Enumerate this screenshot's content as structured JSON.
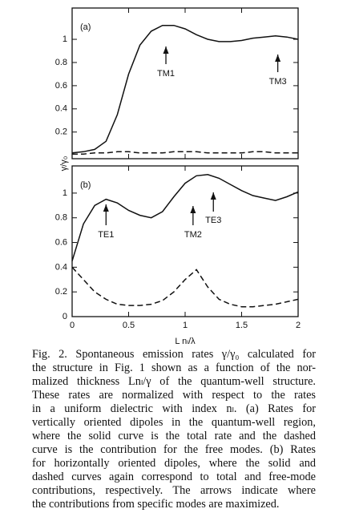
{
  "chart_data": [
    {
      "type": "line",
      "panel_label": "(a)",
      "ylabel": "γ/γ₀",
      "x": [
        0,
        0.1,
        0.2,
        0.3,
        0.4,
        0.5,
        0.6,
        0.7,
        0.8,
        0.9,
        1.0,
        1.1,
        1.2,
        1.3,
        1.4,
        1.5,
        1.6,
        1.7,
        1.8,
        1.9,
        2.0
      ],
      "series": [
        {
          "color": "#111111",
          "linestyle": "solid",
          "values": [
            0.02,
            0.03,
            0.05,
            0.12,
            0.35,
            0.7,
            0.95,
            1.07,
            1.12,
            1.12,
            1.09,
            1.04,
            1.0,
            0.98,
            0.98,
            0.99,
            1.01,
            1.02,
            1.03,
            1.02,
            1.0
          ]
        },
        {
          "color": "#111111",
          "linestyle": "dashed",
          "values": [
            0.01,
            0.01,
            0.02,
            0.02,
            0.03,
            0.03,
            0.02,
            0.02,
            0.02,
            0.03,
            0.03,
            0.03,
            0.02,
            0.02,
            0.02,
            0.02,
            0.03,
            0.03,
            0.02,
            0.02,
            0.02
          ]
        }
      ],
      "annotations": [
        {
          "text": "TM1",
          "x": 0.83
        },
        {
          "text": "TM3",
          "x": 1.82
        }
      ],
      "xlim": [
        0,
        2
      ],
      "xticks": [
        0,
        0.5,
        1,
        1.5,
        2
      ],
      "ylim": [
        -0.03,
        1.27
      ],
      "yticks": [
        0.2,
        0.4,
        0.6,
        0.8,
        1
      ]
    },
    {
      "type": "line",
      "panel_label": "(b)",
      "xlabel": "L nₗ/λ",
      "x": [
        0,
        0.1,
        0.2,
        0.3,
        0.4,
        0.5,
        0.6,
        0.7,
        0.8,
        0.9,
        1.0,
        1.1,
        1.2,
        1.3,
        1.4,
        1.5,
        1.6,
        1.7,
        1.8,
        1.9,
        2.0
      ],
      "series": [
        {
          "color": "#111111",
          "linestyle": "solid",
          "values": [
            0.45,
            0.75,
            0.9,
            0.95,
            0.92,
            0.86,
            0.82,
            0.8,
            0.85,
            0.97,
            1.08,
            1.14,
            1.15,
            1.12,
            1.07,
            1.02,
            0.98,
            0.96,
            0.94,
            0.97,
            1.01
          ]
        },
        {
          "color": "#111111",
          "linestyle": "dashed",
          "values": [
            0.4,
            0.3,
            0.2,
            0.14,
            0.1,
            0.09,
            0.09,
            0.1,
            0.13,
            0.2,
            0.3,
            0.38,
            0.24,
            0.14,
            0.1,
            0.08,
            0.08,
            0.09,
            0.1,
            0.12,
            0.14
          ]
        }
      ],
      "annotations": [
        {
          "text": "TE1",
          "x": 0.3
        },
        {
          "text": "TM2",
          "x": 1.07
        },
        {
          "text": "TE3",
          "x": 1.25
        }
      ],
      "xlim": [
        0,
        2
      ],
      "xticks": [
        0,
        0.5,
        1,
        1.5,
        2
      ],
      "ylim": [
        0,
        1.22
      ],
      "yticks": [
        0,
        0.2,
        0.4,
        0.6,
        0.8,
        1
      ]
    }
  ],
  "caption": [
    "Fig. 2.  Spontaneous emission rates γ/γ₀ calculated for",
    "the structure in Fig. 1 shown as a function of the nor-",
    "malized thickness Lnₗ/γ of the quantum-well structure.",
    "These rates are normalized with respect to the rates",
    "in a uniform dielectric with index nₗ.  (a) Rates for",
    "vertically oriented dipoles in the quantum-well region,",
    "where the solid curve is the total rate and the dashed",
    "curve is the contribution for the free modes.  (b) Rates",
    "for horizontally oriented dipoles, where the solid and",
    "dashed curves again correspond to total and free-mode",
    "contributions, respectively.  The arrows indicate where",
    "the contributions from specific modes are maximized."
  ]
}
